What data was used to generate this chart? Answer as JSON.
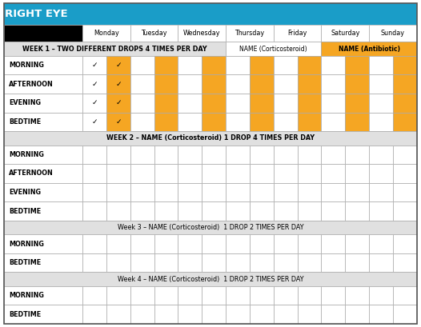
{
  "title": "RIGHT EYE",
  "title_bg": "#1a9dc8",
  "title_color": "#ffffff",
  "header_days": [
    "Monday",
    "Tuesday",
    "Wednesday",
    "Thursday",
    "Friday",
    "Saturday",
    "Sunday"
  ],
  "orange": "#f5a623",
  "light_gray": "#e0e0e0",
  "border_color": "#888888",
  "week1_label": "WEEK 1 – TWO DIFFERENT DROPS 4 TIMES PER DAY",
  "week1_name_cortico": "NAME (Corticosteroid)",
  "week1_name_antibio": "NAME (Antibiotic)",
  "week2_label": "WEEK 2 – NAME (Corticosteroid) 1 DROP 4 TIMES PER DAY",
  "week3_label": "Week 3 – NAME (Corticosteroid)  1 DROP 2 TIMES PER DAY",
  "week4_label": "Week 4 – NAME (Corticosteroid)  1 DROP 2 TIMES PER DAY",
  "week1_rows": [
    "MORNING",
    "AFTERNOON",
    "EVENING",
    "BEDTIME"
  ],
  "week2_rows": [
    "MORNING",
    "AFTERNOON",
    "EVENING",
    "BEDTIME"
  ],
  "week3_rows": [
    "MORNING",
    "BEDTIME"
  ],
  "week4_rows": [
    "MORNING",
    "BEDTIME"
  ],
  "fig_width": 5.26,
  "fig_height": 4.09,
  "dpi": 100
}
